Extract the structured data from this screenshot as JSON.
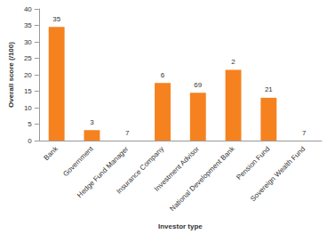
{
  "chart_data": {
    "type": "bar",
    "x_label": "Investor type",
    "y_label": "Overall score (/100)",
    "categories": [
      "Bank",
      "Government",
      "Hedge Fund Manager",
      "Insurance Company",
      "Investment Advisor",
      "National Development Bank",
      "Pension Fund",
      "Sovereign Wealth Fund"
    ],
    "values": [
      34.5,
      3.2,
      0,
      17.5,
      14.5,
      21.5,
      13,
      0
    ],
    "counts": [
      35,
      3,
      7,
      6,
      69,
      2,
      21,
      7
    ],
    "color": "#f5821f",
    "ylim": [
      0,
      40
    ],
    "yticks": [
      0,
      5,
      10,
      15,
      20,
      25,
      30,
      35,
      40
    ],
    "grid": false
  }
}
